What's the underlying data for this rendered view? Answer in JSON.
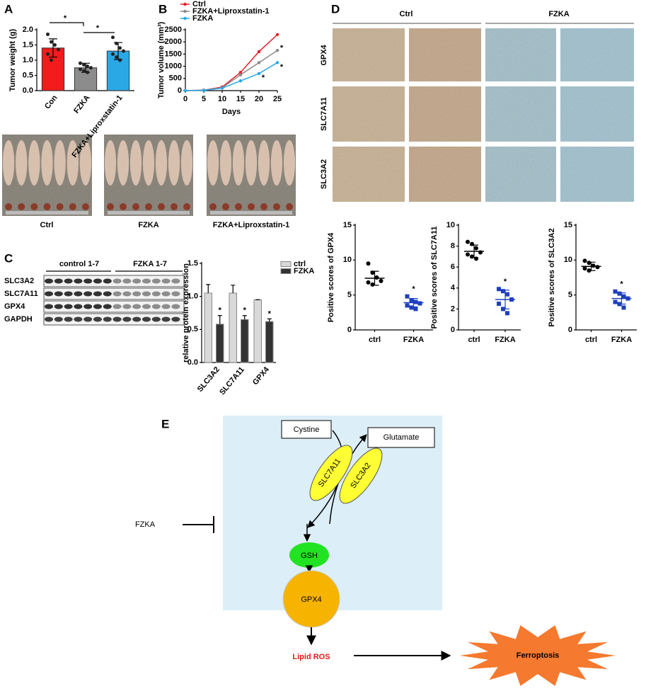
{
  "panels": [
    "A",
    "B",
    "C",
    "D",
    "E"
  ],
  "chart_data": [
    {
      "type": "bar",
      "ylabel": "Tumor weight (g)",
      "categories": [
        "Con",
        "FZKA",
        "FZKA+Liproxstatin-1"
      ],
      "values": [
        1.4,
        0.75,
        1.3
      ],
      "errors": [
        0.3,
        0.15,
        0.28
      ],
      "colors": [
        "#f21c1c",
        "#8c8c8c",
        "#2aa8e6"
      ],
      "points": [
        [
          1.85,
          1.6,
          1.5,
          1.35,
          1.2,
          1.0
        ],
        [
          0.9,
          0.85,
          0.8,
          0.75,
          0.7,
          0.65,
          0.6
        ],
        [
          1.75,
          1.55,
          1.4,
          1.3,
          1.2,
          1.1,
          1.0
        ]
      ],
      "ylim": [
        0,
        2
      ],
      "yticks": [
        {
          "value": 0,
          "label": "0.0"
        },
        {
          "value": 0.5,
          "label": "0.5"
        },
        {
          "value": 1,
          "label": "1.0"
        },
        {
          "value": 1.5,
          "label": "1.5"
        },
        {
          "value": 2,
          "label": "2.0"
        }
      ],
      "annotations": [
        "*",
        "*"
      ]
    },
    {
      "type": "line",
      "ylabel": "Tumor volume (mm³)",
      "xlabel": "Days",
      "x": [
        0,
        5,
        10,
        15,
        20,
        25
      ],
      "series": [
        {
          "name": "Ctrl",
          "color": "#e8202a",
          "values": [
            0,
            20,
            150,
            750,
            1600,
            2300
          ]
        },
        {
          "name": "FZKA+Liproxstatin-1",
          "color": "#8a8a8a",
          "values": [
            0,
            20,
            120,
            650,
            1150,
            1650
          ]
        },
        {
          "name": "FZKA",
          "color": "#2aa8e6",
          "values": [
            0,
            10,
            100,
            400,
            700,
            1150
          ]
        }
      ],
      "xlim": [
        0,
        25
      ],
      "xticks": [
        0,
        5,
        10,
        15,
        20,
        25
      ],
      "ylim": [
        0,
        2500
      ],
      "yticks": [
        0,
        500,
        1000,
        1500,
        2000,
        2500
      ],
      "annotations": [
        "*",
        "*",
        "*"
      ]
    },
    {
      "type": "grouped-bar",
      "ylabel": "relative protein expression",
      "categories": [
        "SLC3A2",
        "SLC7A11",
        "GPX4"
      ],
      "series": [
        {
          "name": "ctrl",
          "color": "#d9d9d9",
          "values": [
            1.05,
            1.05,
            0.95
          ],
          "errors": [
            0.13,
            0.12,
            0.0
          ]
        },
        {
          "name": "FZKA",
          "color": "#333333",
          "values": [
            0.58,
            0.65,
            0.62
          ],
          "errors": [
            0.13,
            0.06,
            0.04
          ]
        }
      ],
      "ylim": [
        0,
        1.5
      ],
      "yticks": [
        {
          "value": 0,
          "label": "0.0"
        },
        {
          "value": 0.5,
          "label": "0.5"
        },
        {
          "value": 1,
          "label": "1.0"
        },
        {
          "value": 1.5,
          "label": "1.5"
        }
      ],
      "annotations": [
        "*",
        "*",
        "*"
      ]
    },
    {
      "type": "dot",
      "ylabel": "Positive scores of GPX4",
      "categories": [
        "ctrl",
        "FZKA"
      ],
      "colors": [
        "#000000",
        "#1f3fbf"
      ],
      "points": [
        [
          9.5,
          8.2,
          7.5,
          7.0,
          6.8,
          6.5
        ],
        [
          4.8,
          4.2,
          4.0,
          3.8,
          3.5,
          3.2,
          3.0
        ]
      ],
      "means": [
        7.4,
        3.9
      ],
      "errors": [
        1.0,
        0.6
      ],
      "ylim": [
        0,
        15
      ],
      "yticks": [
        0,
        5,
        10,
        15
      ],
      "annotations": [
        "*"
      ]
    },
    {
      "type": "dot",
      "ylabel": "Positive scores of SLC7A11",
      "categories": [
        "ctrl",
        "FZKA"
      ],
      "colors": [
        "#000000",
        "#1f3fbf"
      ],
      "points": [
        [
          8.4,
          8.2,
          7.8,
          7.4,
          7.2,
          7.0,
          6.8
        ],
        [
          3.9,
          3.7,
          3.4,
          2.9,
          2.5,
          2.0,
          1.6
        ]
      ],
      "means": [
        7.5,
        2.9
      ],
      "errors": [
        0.6,
        0.9
      ],
      "ylim": [
        0,
        10
      ],
      "yticks": [
        0,
        2,
        4,
        6,
        8,
        10
      ],
      "annotations": [
        "*"
      ]
    },
    {
      "type": "dot",
      "ylabel": "Positive scores of SLC3A2",
      "categories": [
        "ctrl",
        "FZKA"
      ],
      "colors": [
        "#000000",
        "#1f3fbf"
      ],
      "points": [
        [
          9.9,
          9.6,
          9.2,
          9.0,
          8.8,
          8.5
        ],
        [
          5.5,
          5.2,
          4.8,
          4.5,
          4.0,
          3.7,
          3.2
        ]
      ],
      "means": [
        9.1,
        4.5
      ],
      "errors": [
        0.6,
        0.8
      ],
      "ylim": [
        0,
        15
      ],
      "yticks": [
        0,
        5,
        10,
        15
      ],
      "annotations": [
        "*"
      ]
    }
  ],
  "photos": {
    "labels": [
      "Ctrl",
      "FZKA",
      "FZKA+Liproxstatin-1"
    ]
  },
  "blot": {
    "groups": [
      "control 1-7",
      "FZKA 1-7"
    ],
    "rows": [
      "SLC3A2",
      "SLC7A11",
      "GPX4",
      "GAPDH"
    ]
  },
  "ihc": {
    "columns": [
      "Ctrl",
      "FZKA"
    ],
    "rows": [
      "GPX4",
      "SLC7A11",
      "SLC3A2"
    ]
  },
  "diagram": {
    "inhibitor": "FZKA",
    "input": "Cystine",
    "output": "Glutamate",
    "transporters": [
      "SLC7A11",
      "SLC3A2"
    ],
    "nodes": [
      "GSH",
      "GPX4"
    ],
    "product": "Lipid ROS",
    "outcome": "Ferroptosis"
  }
}
